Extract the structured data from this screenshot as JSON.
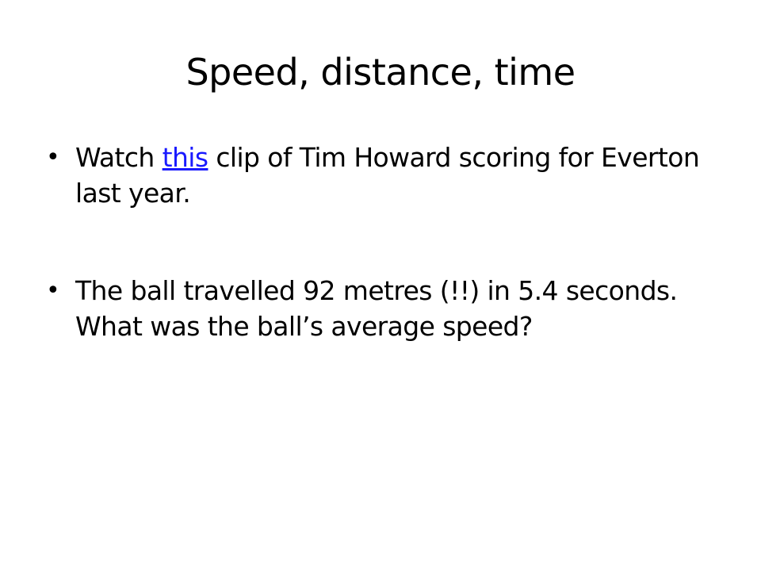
{
  "slide": {
    "title": "Speed, distance, time",
    "bullet_symbol": "•",
    "bullets": [
      {
        "before": "Watch ",
        "link": "this",
        "after": " clip of Tim Howard scoring for Everton last year."
      },
      {
        "text": "The ball travelled 92 metres (!!) in 5.4 seconds. What was the ball’s average speed?"
      }
    ]
  },
  "colors": {
    "link": "#1a1aff",
    "text": "#000000",
    "background": "#ffffff"
  }
}
